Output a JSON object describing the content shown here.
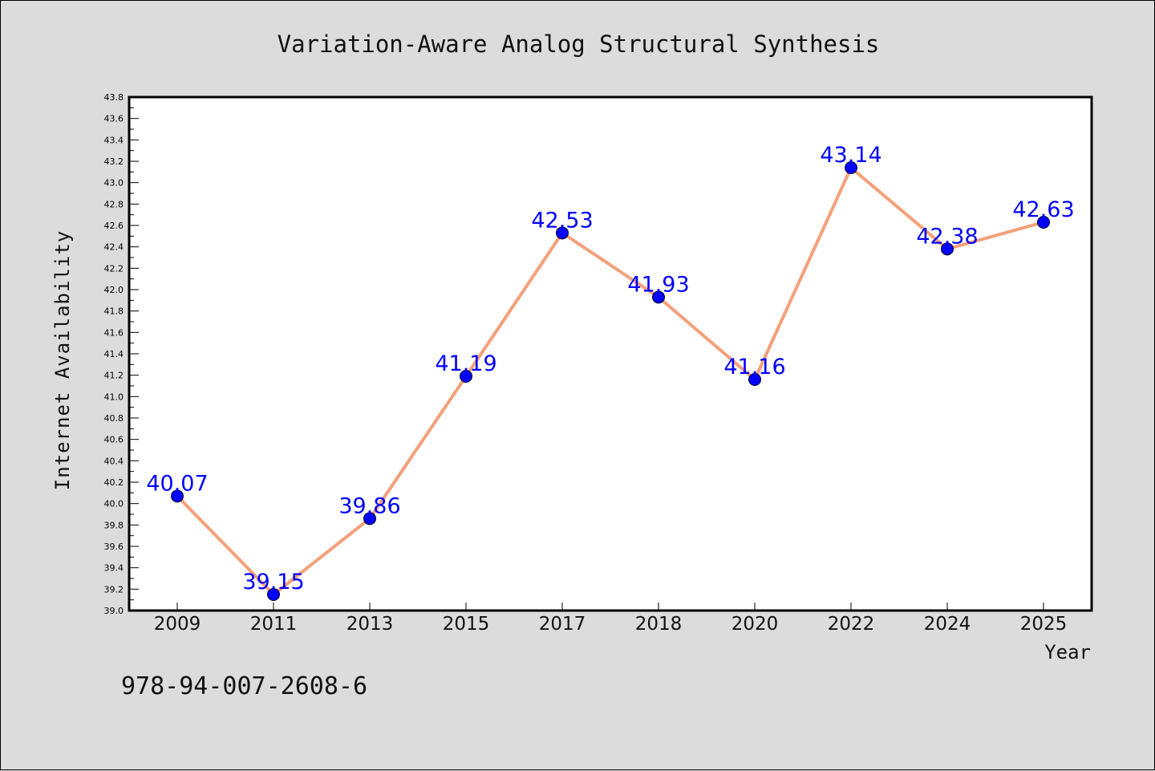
{
  "chart_data": {
    "type": "line",
    "title": "Variation-Aware Analog Structural Synthesis",
    "xlabel": "Year",
    "ylabel": "Internet Availability",
    "categories": [
      "2009",
      "2011",
      "2013",
      "2015",
      "2017",
      "2018",
      "2020",
      "2022",
      "2024",
      "2025"
    ],
    "values": [
      40.07,
      39.15,
      39.86,
      41.19,
      42.53,
      41.93,
      41.16,
      43.14,
      42.38,
      42.63
    ],
    "value_labels": [
      "40.07",
      "39.15",
      "39.86",
      "41.19",
      "42.53",
      "41.93",
      "41.16",
      "43.14",
      "42.38",
      "42.63"
    ],
    "ylim": [
      39.0,
      43.8
    ],
    "yticks": [
      "39.0",
      "39.2",
      "39.4",
      "39.6",
      "39.8",
      "40.0",
      "40.2",
      "40.4",
      "40.6",
      "40.8",
      "41.0",
      "41.2",
      "41.4",
      "41.6",
      "41.8",
      "42.0",
      "42.2",
      "42.4",
      "42.6",
      "42.8",
      "43.0",
      "43.2",
      "43.4",
      "43.6",
      "43.8"
    ],
    "ytick_step": 0.2,
    "grid": false,
    "legend": "none",
    "colors": {
      "line": "#f4a07a",
      "marker": "#0000ff",
      "data_label": "#0000ff",
      "plot_background": "#ffffff",
      "figure_background": "#dcdcdc"
    }
  },
  "footnote": "978-94-007-2608-6"
}
